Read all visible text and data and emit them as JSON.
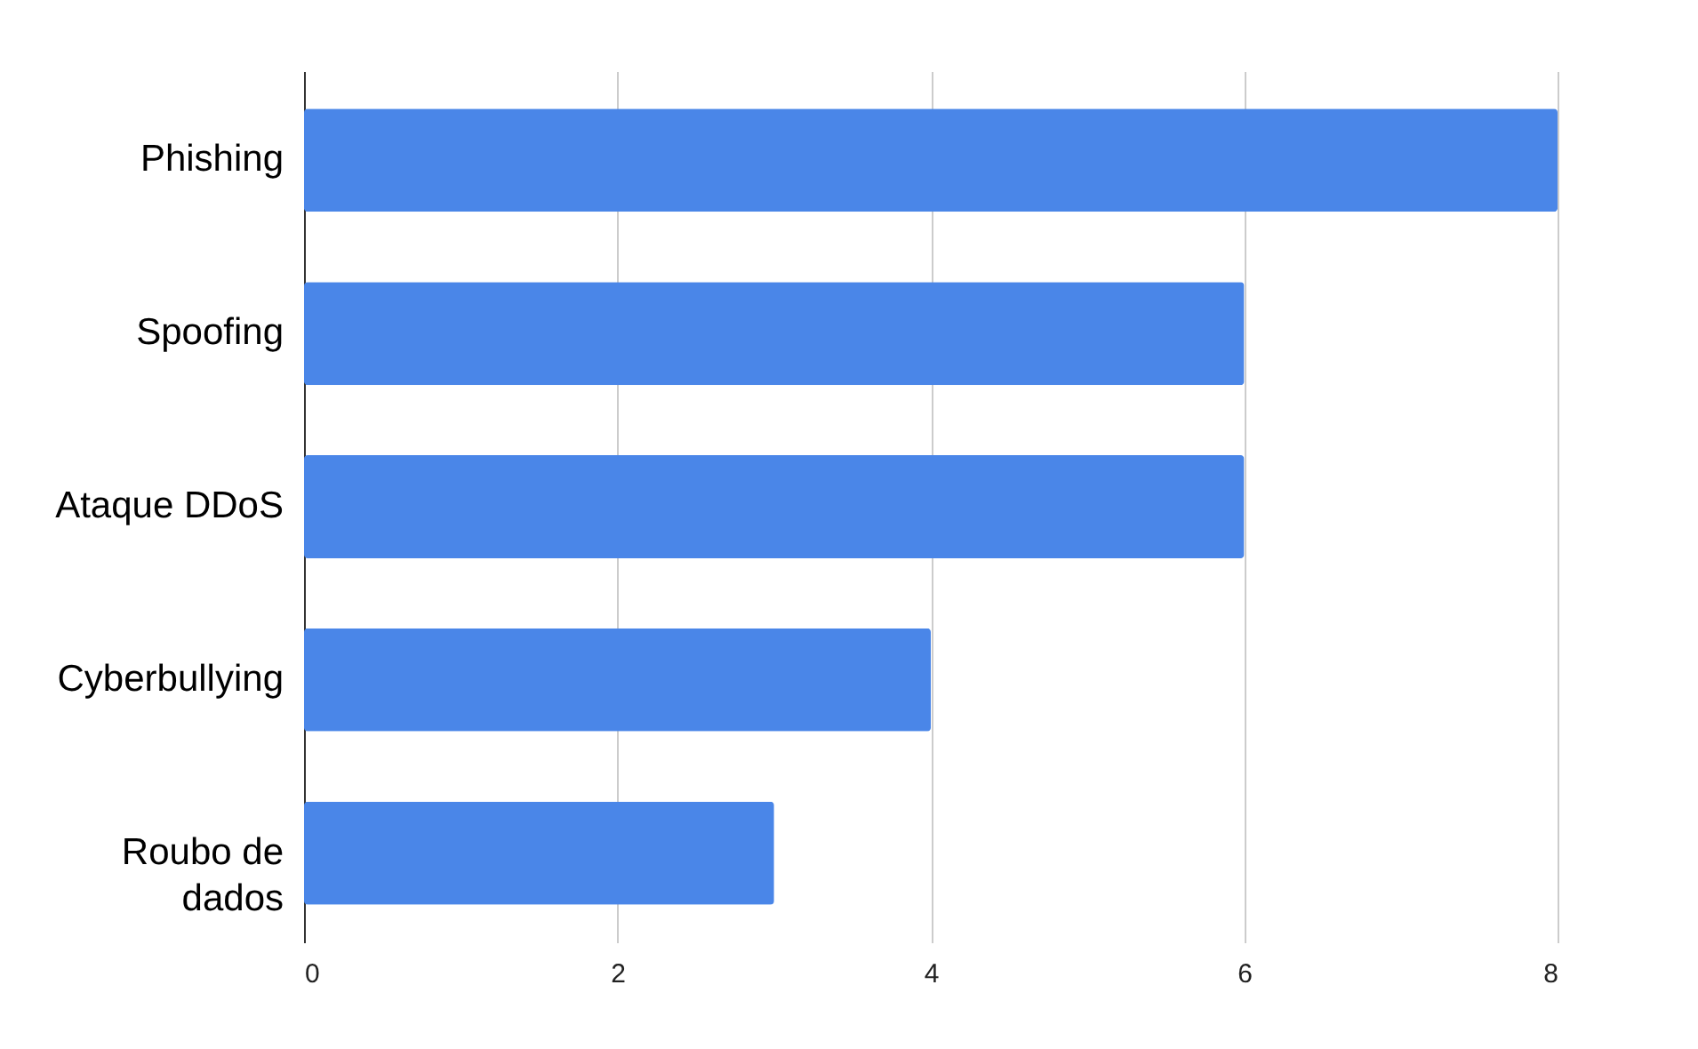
{
  "chart_data": {
    "type": "bar",
    "orientation": "horizontal",
    "categories": [
      "Phishing",
      "Spoofing",
      "Ataque DDoS",
      "Cyberbullying",
      "Roubo de dados"
    ],
    "values": [
      8,
      6,
      6,
      4,
      3
    ],
    "color": "#4a86e8",
    "xlim": [
      0,
      8
    ],
    "xticks": [
      0,
      2,
      4,
      6,
      8
    ],
    "grid": "x"
  }
}
